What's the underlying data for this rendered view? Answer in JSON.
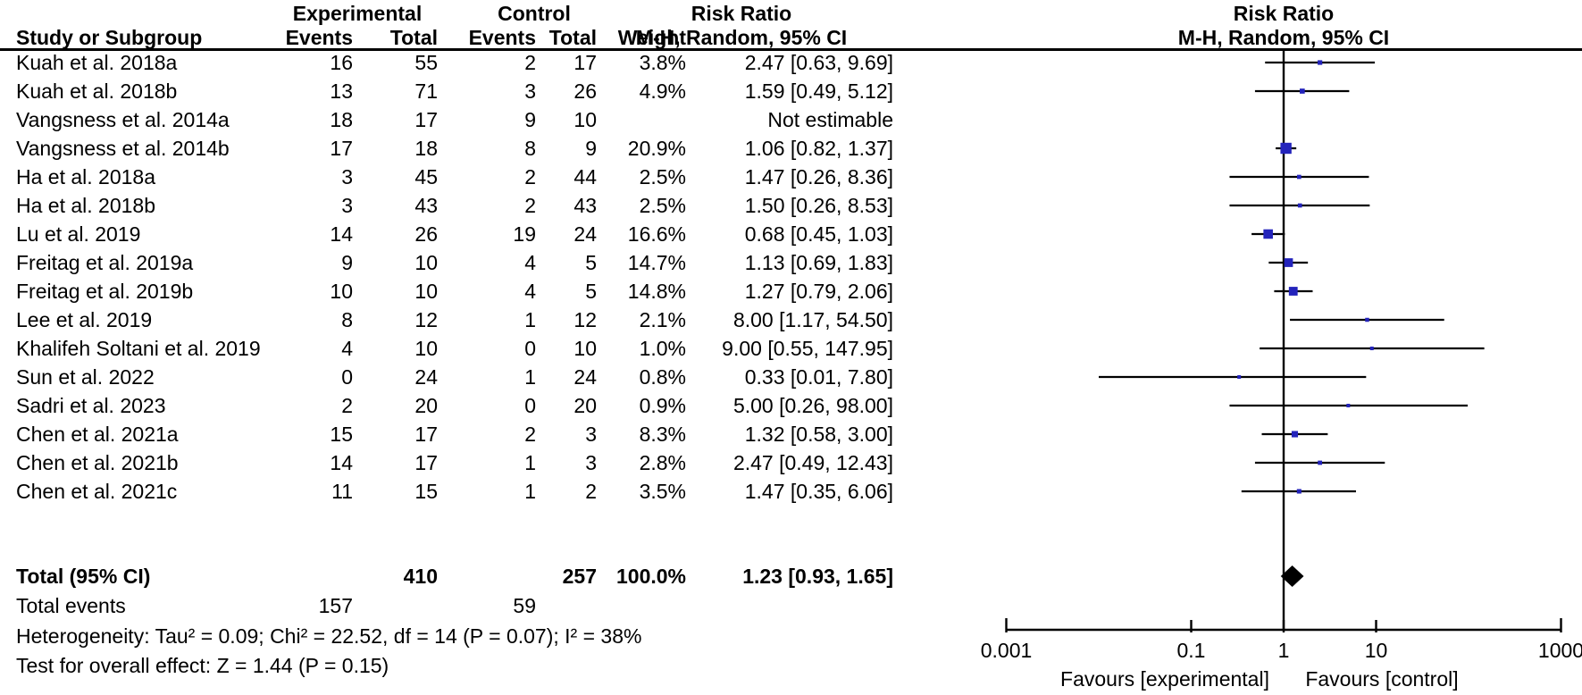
{
  "figure": {
    "header": {
      "study_col": "Study or Subgroup",
      "group_experimental": "Experimental",
      "group_control": "Control",
      "events_col": "Events",
      "total_col": "Total",
      "weight_col": "Weight",
      "effect_col_title": "Risk Ratio",
      "effect_col_subtitle": "M-H, Random, 95% CI",
      "plot_col_title": "Risk Ratio",
      "plot_col_subtitle": "M-H, Random, 95% CI"
    }
  },
  "chart_data": {
    "type": "forest",
    "effect_measure": "Risk Ratio",
    "method": "M-H, Random, 95% CI",
    "x_axis": {
      "scale": "log",
      "ticks": [
        0.001,
        0.1,
        1,
        10,
        1000
      ],
      "tick_labels": [
        "0.001",
        "0.1",
        "1",
        "10",
        "1000"
      ],
      "left_label": "Favours [experimental]",
      "right_label": "Favours [control]"
    },
    "studies": [
      {
        "name": "Kuah et al. 2018a",
        "exp_events": 16,
        "exp_total": 55,
        "ctl_events": 2,
        "ctl_total": 17,
        "weight": "3.8%",
        "weight_pct": 3.8,
        "rr_text": "2.47 [0.63, 9.69]",
        "rr": 2.47,
        "ci_low": 0.63,
        "ci_high": 9.69,
        "estimable": true
      },
      {
        "name": "Kuah et al. 2018b",
        "exp_events": 13,
        "exp_total": 71,
        "ctl_events": 3,
        "ctl_total": 26,
        "weight": "4.9%",
        "weight_pct": 4.9,
        "rr_text": "1.59 [0.49, 5.12]",
        "rr": 1.59,
        "ci_low": 0.49,
        "ci_high": 5.12,
        "estimable": true
      },
      {
        "name": "Vangsness et al. 2014a",
        "exp_events": 18,
        "exp_total": 17,
        "ctl_events": 9,
        "ctl_total": 10,
        "weight": "",
        "weight_pct": null,
        "rr_text": "Not estimable",
        "rr": null,
        "ci_low": null,
        "ci_high": null,
        "estimable": false
      },
      {
        "name": "Vangsness et al. 2014b",
        "exp_events": 17,
        "exp_total": 18,
        "ctl_events": 8,
        "ctl_total": 9,
        "weight": "20.9%",
        "weight_pct": 20.9,
        "rr_text": "1.06 [0.82, 1.37]",
        "rr": 1.06,
        "ci_low": 0.82,
        "ci_high": 1.37,
        "estimable": true
      },
      {
        "name": "Ha et al. 2018a",
        "exp_events": 3,
        "exp_total": 45,
        "ctl_events": 2,
        "ctl_total": 44,
        "weight": "2.5%",
        "weight_pct": 2.5,
        "rr_text": "1.47 [0.26, 8.36]",
        "rr": 1.47,
        "ci_low": 0.26,
        "ci_high": 8.36,
        "estimable": true
      },
      {
        "name": "Ha et al. 2018b",
        "exp_events": 3,
        "exp_total": 43,
        "ctl_events": 2,
        "ctl_total": 43,
        "weight": "2.5%",
        "weight_pct": 2.5,
        "rr_text": "1.50 [0.26, 8.53]",
        "rr": 1.5,
        "ci_low": 0.26,
        "ci_high": 8.53,
        "estimable": true
      },
      {
        "name": "Lu et al. 2019",
        "exp_events": 14,
        "exp_total": 26,
        "ctl_events": 19,
        "ctl_total": 24,
        "weight": "16.6%",
        "weight_pct": 16.6,
        "rr_text": "0.68 [0.45, 1.03]",
        "rr": 0.68,
        "ci_low": 0.45,
        "ci_high": 1.03,
        "estimable": true
      },
      {
        "name": "Freitag et al. 2019a",
        "exp_events": 9,
        "exp_total": 10,
        "ctl_events": 4,
        "ctl_total": 5,
        "weight": "14.7%",
        "weight_pct": 14.7,
        "rr_text": "1.13 [0.69, 1.83]",
        "rr": 1.13,
        "ci_low": 0.69,
        "ci_high": 1.83,
        "estimable": true
      },
      {
        "name": "Freitag et al. 2019b",
        "exp_events": 10,
        "exp_total": 10,
        "ctl_events": 4,
        "ctl_total": 5,
        "weight": "14.8%",
        "weight_pct": 14.8,
        "rr_text": "1.27 [0.79, 2.06]",
        "rr": 1.27,
        "ci_low": 0.79,
        "ci_high": 2.06,
        "estimable": true
      },
      {
        "name": "Lee et al. 2019",
        "exp_events": 8,
        "exp_total": 12,
        "ctl_events": 1,
        "ctl_total": 12,
        "weight": "2.1%",
        "weight_pct": 2.1,
        "rr_text": "8.00 [1.17, 54.50]",
        "rr": 8.0,
        "ci_low": 1.17,
        "ci_high": 54.5,
        "estimable": true
      },
      {
        "name": "Khalifeh Soltani et al. 2019",
        "exp_events": 4,
        "exp_total": 10,
        "ctl_events": 0,
        "ctl_total": 10,
        "weight": "1.0%",
        "weight_pct": 1.0,
        "rr_text": "9.00 [0.55, 147.95]",
        "rr": 9.0,
        "ci_low": 0.55,
        "ci_high": 147.95,
        "estimable": true
      },
      {
        "name": "Sun et al. 2022",
        "exp_events": 0,
        "exp_total": 24,
        "ctl_events": 1,
        "ctl_total": 24,
        "weight": "0.8%",
        "weight_pct": 0.8,
        "rr_text": "0.33 [0.01, 7.80]",
        "rr": 0.33,
        "ci_low": 0.01,
        "ci_high": 7.8,
        "estimable": true
      },
      {
        "name": "Sadri et al. 2023",
        "exp_events": 2,
        "exp_total": 20,
        "ctl_events": 0,
        "ctl_total": 20,
        "weight": "0.9%",
        "weight_pct": 0.9,
        "rr_text": "5.00 [0.26, 98.00]",
        "rr": 5.0,
        "ci_low": 0.26,
        "ci_high": 98.0,
        "estimable": true
      },
      {
        "name": "Chen et al. 2021a",
        "exp_events": 15,
        "exp_total": 17,
        "ctl_events": 2,
        "ctl_total": 3,
        "weight": "8.3%",
        "weight_pct": 8.3,
        "rr_text": "1.32 [0.58, 3.00]",
        "rr": 1.32,
        "ci_low": 0.58,
        "ci_high": 3.0,
        "estimable": true
      },
      {
        "name": "Chen et al. 2021b",
        "exp_events": 14,
        "exp_total": 17,
        "ctl_events": 1,
        "ctl_total": 3,
        "weight": "2.8%",
        "weight_pct": 2.8,
        "rr_text": "2.47 [0.49, 12.43]",
        "rr": 2.47,
        "ci_low": 0.49,
        "ci_high": 12.43,
        "estimable": true
      },
      {
        "name": "Chen et al. 2021c",
        "exp_events": 11,
        "exp_total": 15,
        "ctl_events": 1,
        "ctl_total": 2,
        "weight": "3.5%",
        "weight_pct": 3.5,
        "rr_text": "1.47 [0.35, 6.06]",
        "rr": 1.47,
        "ci_low": 0.35,
        "ci_high": 6.06,
        "estimable": true
      }
    ],
    "total": {
      "label": "Total (95% CI)",
      "exp_total": "410",
      "ctl_total": "257",
      "weight": "100.0%",
      "rr_text": "1.23 [0.93, 1.65]",
      "rr": 1.23,
      "ci_low": 0.93,
      "ci_high": 1.65
    },
    "total_events": {
      "label": "Total events",
      "experimental": "157",
      "control": "59"
    },
    "heterogeneity": "Heterogeneity: Tau² = 0.09; Chi² = 22.52, df = 14 (P = 0.07); I² = 38%",
    "overall_effect": "Test for overall effect: Z = 1.44 (P = 0.15)",
    "colors": {
      "marker": "#2323bb",
      "diamond": "#000000",
      "line": "#000000",
      "text": "#000000"
    }
  }
}
